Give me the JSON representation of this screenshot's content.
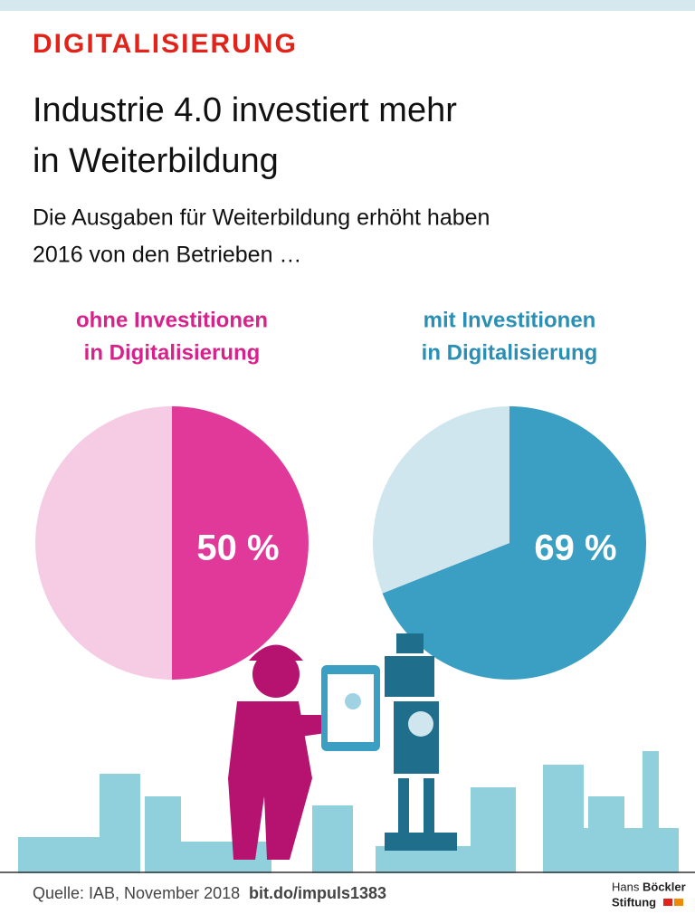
{
  "header": {
    "kicker": "DIGITALISIERUNG",
    "title": [
      "Industrie 4.0 investiert mehr",
      "in Weiterbildung"
    ],
    "subtitle": [
      "Die Ausgaben für Weiterbildung erhöht haben",
      "2016 von den Betrieben …"
    ]
  },
  "chart_data": [
    {
      "type": "pie",
      "title": [
        "ohne Investitionen",
        "in Digitalisierung"
      ],
      "title_color": "#d6228a",
      "values": [
        50,
        50
      ],
      "value_labels": [
        "50 %",
        null
      ],
      "colors": [
        "#e0399a",
        "#f5cce4"
      ]
    },
    {
      "type": "pie",
      "title": [
        "mit Investitionen",
        "in Digitalisierung"
      ],
      "title_color": "#2b8fb5",
      "values": [
        69,
        31
      ],
      "value_labels": [
        "69 %",
        null
      ],
      "colors": [
        "#3a9fc2",
        "#cfe6ef"
      ]
    }
  ],
  "footer": {
    "source": "Quelle: IAB, November 2018",
    "link": "bit.do/impuls1383",
    "logo": [
      "Hans",
      "Böckler",
      "Stiftung"
    ]
  }
}
